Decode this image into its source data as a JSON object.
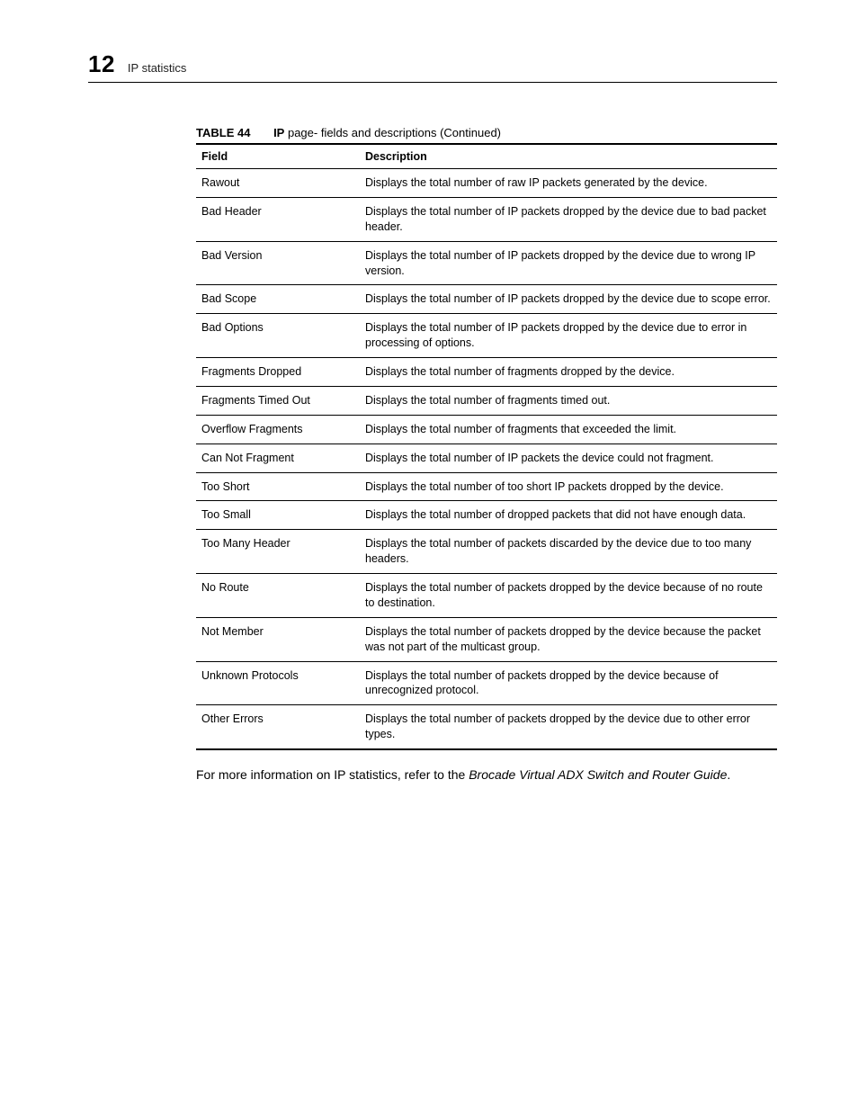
{
  "header": {
    "chapter_number": "12",
    "chapter_title": "IP statistics"
  },
  "table": {
    "number": "TABLE 44",
    "title_prefix_bold": "IP",
    "title_rest": " page- fields and descriptions (Continued)",
    "columns": {
      "field": "Field",
      "description": "Description"
    },
    "rows": [
      {
        "field": "Rawout",
        "description": "Displays the total number of raw IP packets generated by the device."
      },
      {
        "field": "Bad Header",
        "description": "Displays the total number of IP packets dropped by the device due to bad packet header."
      },
      {
        "field": "Bad Version",
        "description": "Displays the total number of IP packets dropped by the device due to wrong IP version."
      },
      {
        "field": "Bad Scope",
        "description": "Displays the total number of IP packets dropped by the device due to scope error."
      },
      {
        "field": "Bad Options",
        "description": "Displays the total number of IP packets dropped by the device due to error in processing of options."
      },
      {
        "field": "Fragments Dropped",
        "description": "Displays the total number of fragments dropped by the device."
      },
      {
        "field": "Fragments Timed Out",
        "description": "Displays the total number of fragments timed out."
      },
      {
        "field": "Overflow Fragments",
        "description": "Displays the total number of fragments that exceeded the limit."
      },
      {
        "field": "Can Not Fragment",
        "description": "Displays the total number of IP packets the device could not fragment."
      },
      {
        "field": " Too Short",
        "description": "Displays the total number of too short IP packets dropped by the device."
      },
      {
        "field": "Too Small",
        "description": "Displays the total number of dropped packets that did not have enough data."
      },
      {
        "field": "Too Many Header",
        "description": "Displays the total number of packets discarded by the device due to too many headers."
      },
      {
        "field": "No Route",
        "description": "Displays the total number of packets dropped by the device because of no route to destination."
      },
      {
        "field": "Not Member",
        "description": "Displays the total number of packets dropped by the device because the packet was not part of the multicast group."
      },
      {
        "field": "Unknown Protocols",
        "description": "Displays the total number of packets dropped by the device because of unrecognized protocol."
      },
      {
        "field": "Other Errors",
        "description": "Displays the total number of packets dropped by the device due to other error types."
      }
    ]
  },
  "footnote": {
    "text_before": "For more information on IP statistics, refer to the ",
    "italic": "Brocade Virtual ADX Switch and Router Guide",
    "text_after": "."
  }
}
